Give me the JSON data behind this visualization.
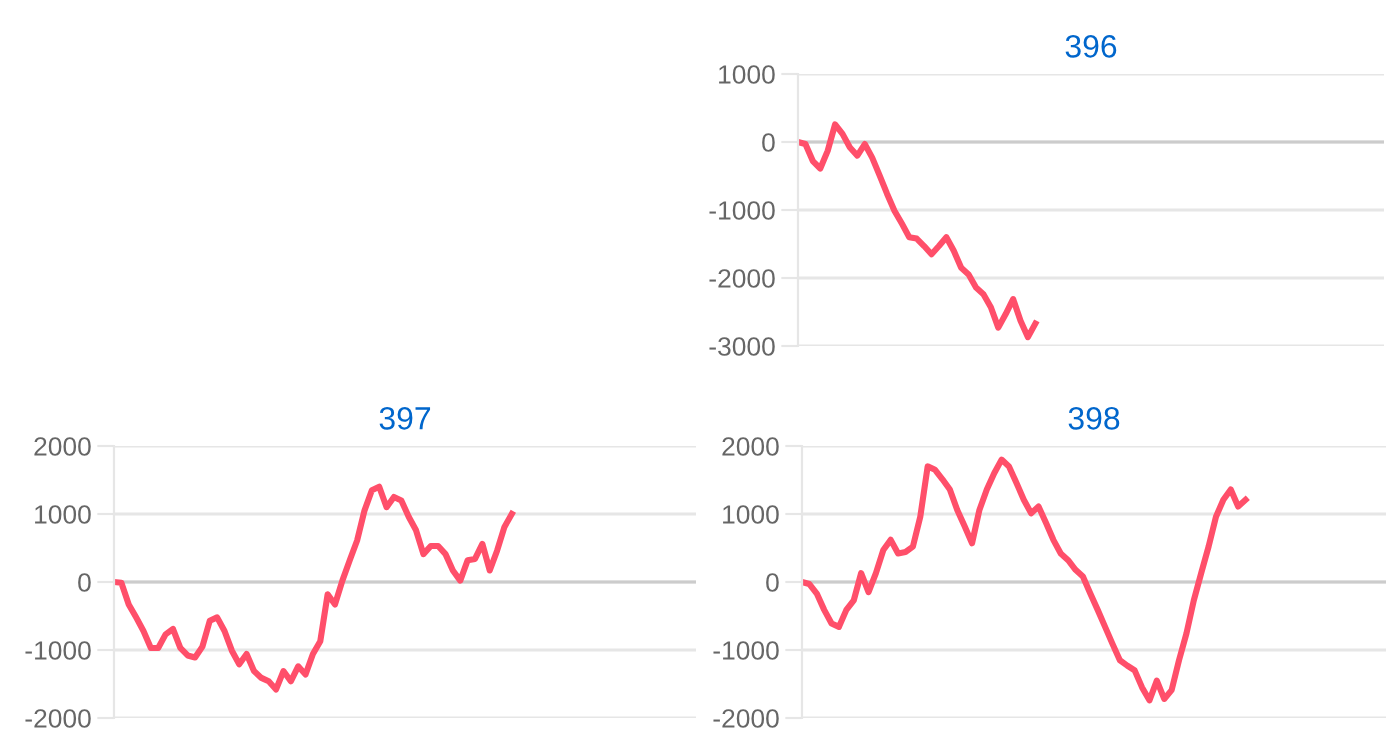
{
  "chart_data": [
    {
      "type": "line",
      "title": "396",
      "categories": [
        null,
        null,
        null,
        null,
        null,
        null,
        null,
        null,
        null,
        null,
        null,
        null,
        null,
        null,
        null,
        null,
        null,
        null,
        null,
        null,
        null,
        null,
        null,
        null,
        null,
        null,
        null,
        null,
        null,
        null,
        null,
        null,
        null,
        null,
        null,
        null,
        null,
        null,
        null,
        null,
        null,
        null,
        null,
        null,
        null,
        null,
        null,
        null,
        null,
        null,
        null,
        null,
        null,
        null,
        null,
        null,
        null,
        null,
        null,
        null,
        null,
        null,
        null,
        null,
        null,
        null,
        null,
        null,
        null,
        null,
        null,
        null,
        null,
        null,
        null,
        null,
        null,
        null,
        null,
        null
      ],
      "series": [
        {
          "color": "#ff4f6a",
          "values": [
            0,
            -30,
            -280,
            -390,
            -130,
            260,
            120,
            -80,
            -200,
            -30,
            -230,
            -490,
            -760,
            -1010,
            -1200,
            -1400,
            -1420,
            -1530,
            -1650,
            -1530,
            -1400,
            -1600,
            -1850,
            -1950,
            -2140,
            -2240,
            -2430,
            -2730,
            -2530,
            -2310,
            -2630,
            -2870,
            -2670,
            null,
            null,
            null,
            null,
            null,
            null,
            null,
            null,
            null,
            null,
            null,
            null,
            null,
            null,
            null,
            null,
            null,
            null,
            null,
            null,
            null,
            null,
            null,
            null,
            null,
            null,
            null,
            null,
            null,
            null,
            null,
            null,
            null,
            null,
            null,
            null,
            null,
            null,
            null,
            null,
            null,
            null,
            null,
            null,
            null,
            null,
            null
          ]
        }
      ],
      "ylim": [
        -3000,
        1000
      ],
      "yticks": [
        -3000,
        -2000,
        -1000,
        0,
        1000
      ],
      "grid": "y",
      "marker": "none",
      "line_style": "solid"
    },
    {
      "type": "line",
      "title": "397",
      "categories": [
        null,
        null,
        null,
        null,
        null,
        null,
        null,
        null,
        null,
        null,
        null,
        null,
        null,
        null,
        null,
        null,
        null,
        null,
        null,
        null,
        null,
        null,
        null,
        null,
        null,
        null,
        null,
        null,
        null,
        null,
        null,
        null,
        null,
        null,
        null,
        null,
        null,
        null,
        null,
        null,
        null,
        null,
        null,
        null,
        null,
        null,
        null,
        null,
        null,
        null,
        null,
        null,
        null,
        null,
        null,
        null,
        null,
        null,
        null,
        null,
        null,
        null,
        null,
        null,
        null,
        null,
        null,
        null,
        null,
        null,
        null,
        null,
        null,
        null,
        null,
        null,
        null,
        null,
        null,
        null
      ],
      "series": [
        {
          "color": "#ff4f6a",
          "values": [
            0,
            -10,
            -330,
            -520,
            -720,
            -970,
            -970,
            -770,
            -690,
            -970,
            -1080,
            -1110,
            -950,
            -570,
            -520,
            -720,
            -1010,
            -1210,
            -1060,
            -1310,
            -1410,
            -1460,
            -1580,
            -1310,
            -1460,
            -1240,
            -1360,
            -1060,
            -870,
            -180,
            -330,
            20,
            320,
            610,
            1050,
            1350,
            1400,
            1100,
            1250,
            1200,
            960,
            760,
            410,
            530,
            530,
            410,
            170,
            20,
            320,
            340,
            560,
            170,
            460,
            810,
            1000,
            null,
            null,
            null,
            null,
            null,
            null,
            null,
            null,
            null,
            null,
            null,
            null,
            null,
            null,
            null,
            null,
            null,
            null,
            null,
            null,
            null,
            null,
            null,
            null,
            null
          ]
        }
      ],
      "ylim": [
        -2000,
        2000
      ],
      "yticks": [
        -2000,
        -1000,
        0,
        1000,
        2000
      ],
      "grid": "y",
      "marker": "none",
      "line_style": "solid"
    },
    {
      "type": "line",
      "title": "398",
      "categories": [
        null,
        null,
        null,
        null,
        null,
        null,
        null,
        null,
        null,
        null,
        null,
        null,
        null,
        null,
        null,
        null,
        null,
        null,
        null,
        null,
        null,
        null,
        null,
        null,
        null,
        null,
        null,
        null,
        null,
        null,
        null,
        null,
        null,
        null,
        null,
        null,
        null,
        null,
        null,
        null,
        null,
        null,
        null,
        null,
        null,
        null,
        null,
        null,
        null,
        null,
        null,
        null,
        null,
        null,
        null,
        null,
        null,
        null,
        null,
        null,
        null,
        null,
        null,
        null,
        null,
        null,
        null,
        null,
        null,
        null,
        null,
        null,
        null,
        null,
        null,
        null,
        null,
        null,
        null,
        null
      ],
      "series": [
        {
          "color": "#ff4f6a",
          "values": [
            0,
            -30,
            -170,
            -410,
            -610,
            -660,
            -410,
            -270,
            130,
            -150,
            130,
            470,
            620,
            420,
            440,
            520,
            960,
            1700,
            1650,
            1510,
            1360,
            1060,
            820,
            570,
            1060,
            1360,
            1600,
            1800,
            1700,
            1460,
            1210,
            1010,
            1110,
            870,
            620,
            420,
            320,
            180,
            80,
            -170,
            -410,
            -660,
            -910,
            -1150,
            -1230,
            -1300,
            -1550,
            -1740,
            -1450,
            -1720,
            -1590,
            -1150,
            -760,
            -270,
            130,
            520,
            960,
            1210,
            1360,
            1110,
            1210,
            null,
            null,
            null,
            null,
            null,
            null,
            null,
            null,
            null,
            null,
            null,
            null,
            null,
            null,
            null,
            null,
            null,
            null,
            null
          ]
        }
      ],
      "ylim": [
        -2000,
        2000
      ],
      "yticks": [
        -2000,
        -1000,
        0,
        1000,
        2000
      ],
      "grid": "y",
      "marker": "none",
      "line_style": "solid"
    }
  ]
}
